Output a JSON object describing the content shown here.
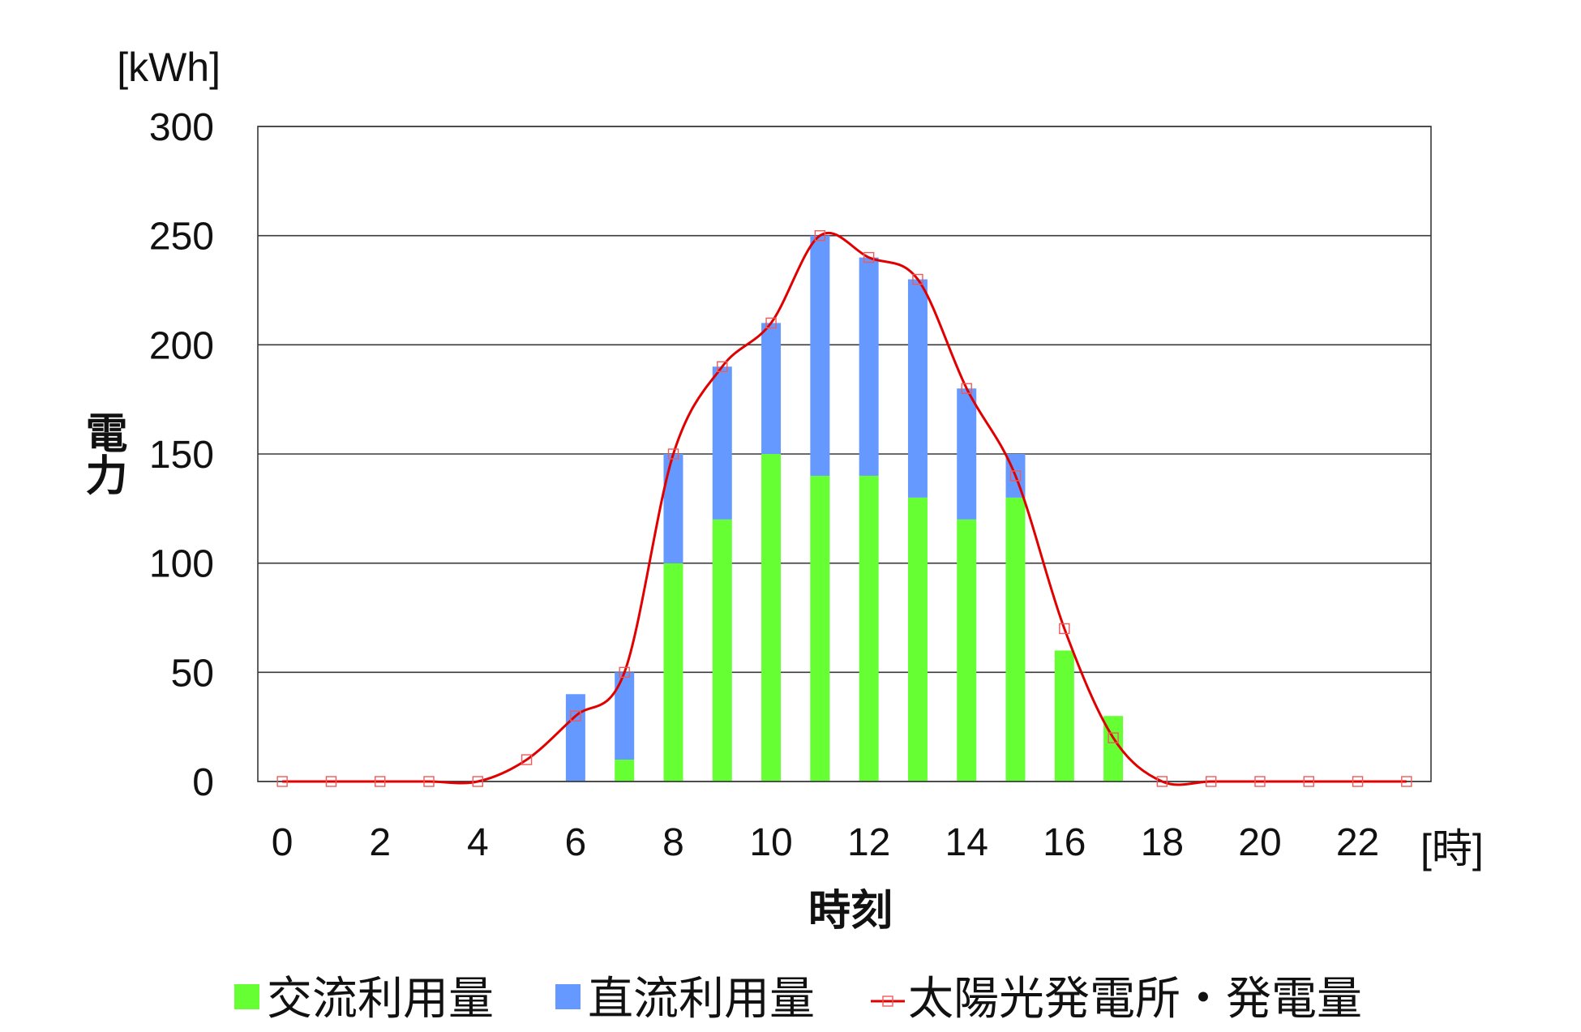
{
  "chart_data": {
    "type": "bar",
    "stacked": true,
    "categories": [
      0,
      1,
      2,
      3,
      4,
      5,
      6,
      7,
      8,
      9,
      10,
      11,
      12,
      13,
      14,
      15,
      16,
      17,
      18,
      19,
      20,
      21,
      22,
      23
    ],
    "xticks": [
      0,
      2,
      4,
      6,
      8,
      10,
      12,
      14,
      16,
      18,
      20,
      22
    ],
    "yticks": [
      0,
      50,
      100,
      150,
      200,
      250,
      300
    ],
    "ylim": [
      0,
      300
    ],
    "xlabel": "時刻",
    "x_unit": "[時]",
    "ylabel": "電力",
    "y_unit": "[kWh]",
    "grid": "horizontal",
    "legend": "bottom",
    "series": [
      {
        "name": "交流利用量",
        "type": "bar",
        "color": "#66FF33",
        "values": [
          0,
          0,
          0,
          0,
          0,
          0,
          0,
          10,
          100,
          120,
          150,
          140,
          140,
          130,
          120,
          130,
          60,
          30,
          0,
          0,
          0,
          0,
          0,
          0
        ]
      },
      {
        "name": "直流利用量",
        "type": "bar",
        "color": "#6699FF",
        "values": [
          0,
          0,
          0,
          0,
          0,
          0,
          40,
          40,
          50,
          70,
          60,
          110,
          100,
          100,
          60,
          20,
          0,
          0,
          0,
          0,
          0,
          0,
          0,
          0
        ]
      },
      {
        "name": "太陽光発電所・発電量",
        "type": "line",
        "color": "#E00000",
        "marker": "hollow-square",
        "marker_color": "#EE5A5A",
        "smooth": true,
        "values": [
          0,
          0,
          0,
          0,
          0,
          10,
          30,
          50,
          150,
          190,
          210,
          250,
          240,
          230,
          180,
          140,
          70,
          20,
          0,
          0,
          0,
          0,
          0,
          0
        ]
      }
    ]
  }
}
